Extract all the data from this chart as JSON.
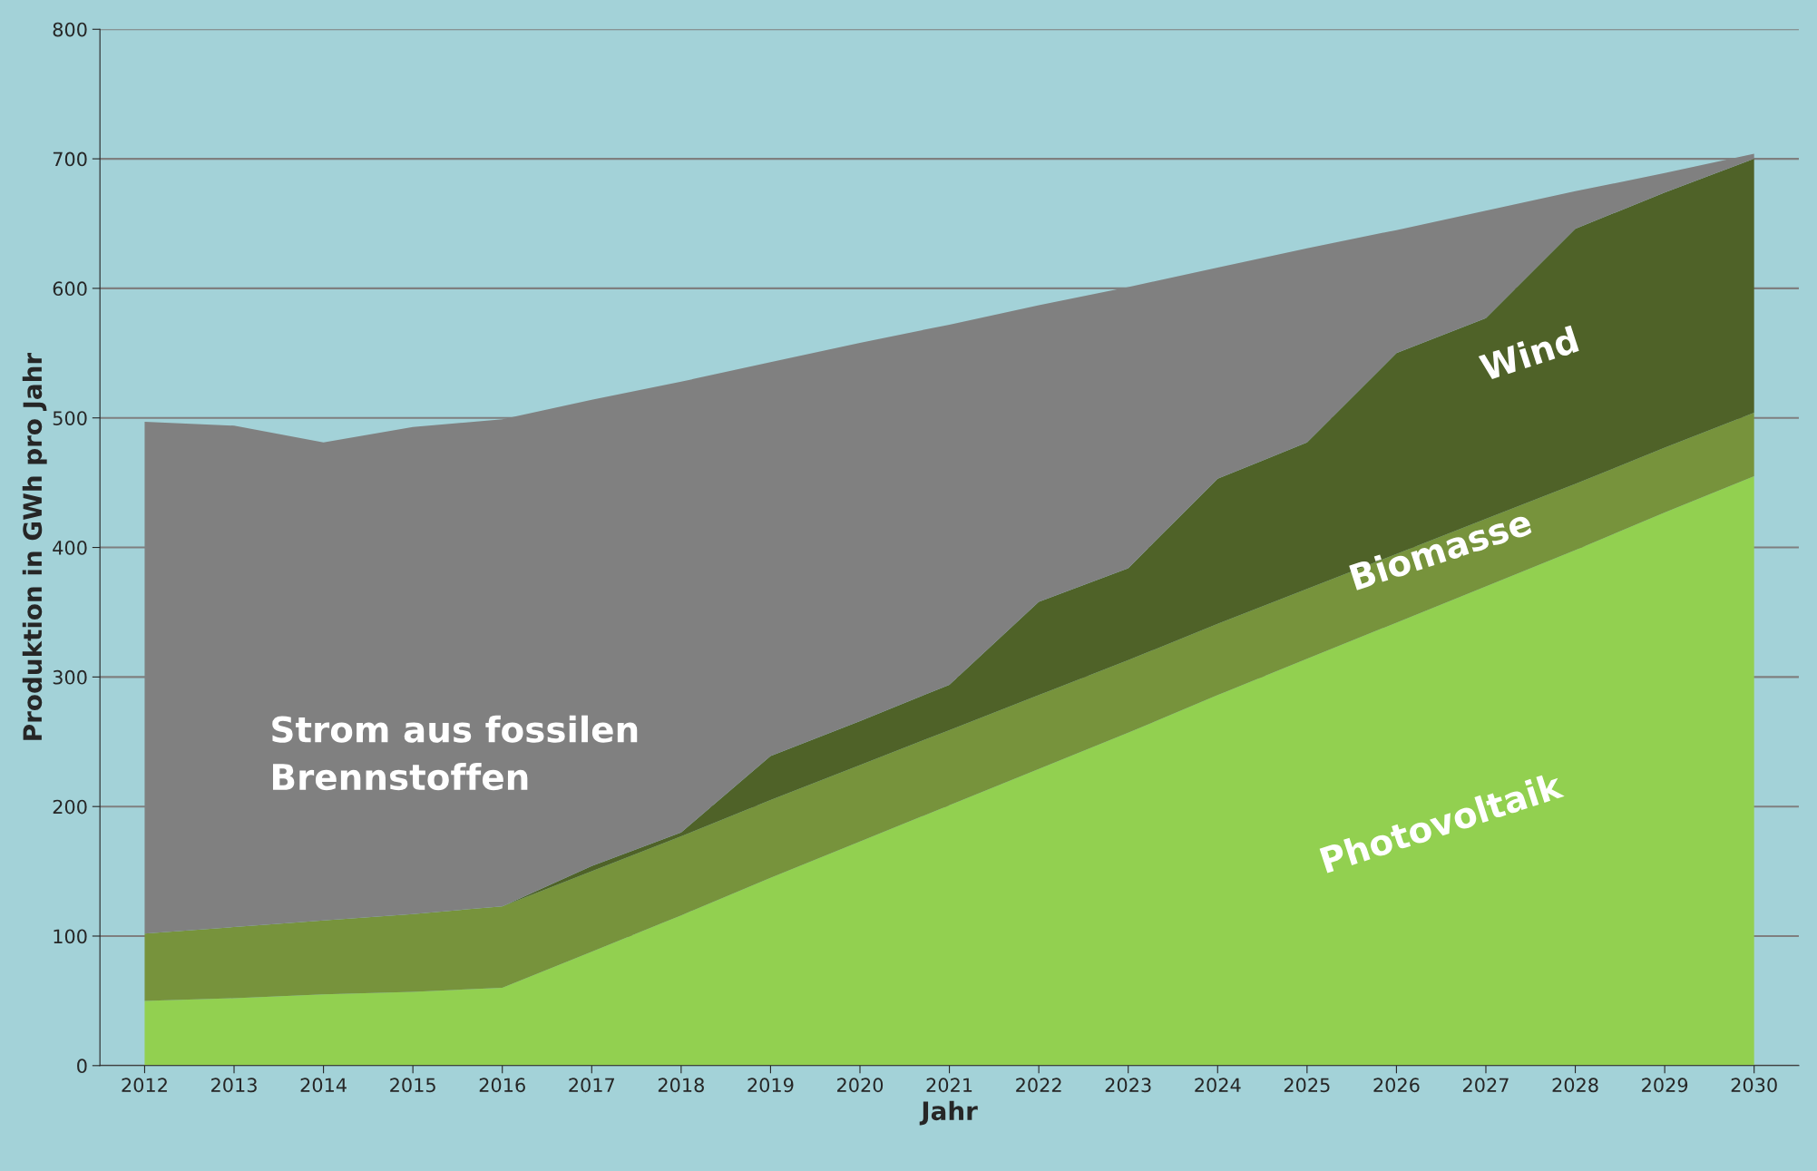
{
  "chart_data": {
    "type": "area",
    "stacked": true,
    "xlabel": "Jahr",
    "ylabel": "Produktion in GWh pro Jahr",
    "categories": [
      "2012",
      "2013",
      "2014",
      "2015",
      "2016",
      "2017",
      "2018",
      "2019",
      "2020",
      "2021",
      "2022",
      "2023",
      "2024",
      "2025",
      "2026",
      "2027",
      "2028",
      "2029",
      "2030"
    ],
    "series": [
      {
        "name": "Photovoltaik",
        "color": "#92d050",
        "values": [
          50,
          52,
          55,
          57,
          60,
          88,
          116,
          145,
          173,
          201,
          229,
          257,
          286,
          314,
          342,
          370,
          398,
          427,
          455
        ]
      },
      {
        "name": "Biomasse",
        "color": "#77933c",
        "values": [
          52,
          55,
          57,
          60,
          63,
          62,
          61,
          60,
          59,
          58,
          57,
          56,
          55,
          54,
          53,
          52,
          51,
          50,
          49
        ]
      },
      {
        "name": "Wind",
        "color": "#4f6228",
        "values": [
          0,
          0,
          0,
          0,
          0,
          4,
          3,
          34,
          34,
          35,
          72,
          71,
          112,
          113,
          155,
          155,
          197,
          197,
          196
        ]
      },
      {
        "name": "Strom aus fossilen Brennstoffen",
        "color": "#808080",
        "values": [
          395,
          387,
          369,
          376,
          376,
          360,
          348,
          304,
          292,
          278,
          229,
          217,
          163,
          150,
          95,
          83,
          29,
          15,
          4
        ]
      }
    ],
    "ylim": [
      0,
      800
    ],
    "yticks": [
      0,
      100,
      200,
      300,
      400,
      500,
      600,
      700,
      800
    ],
    "grid": "y",
    "legend": false
  }
}
